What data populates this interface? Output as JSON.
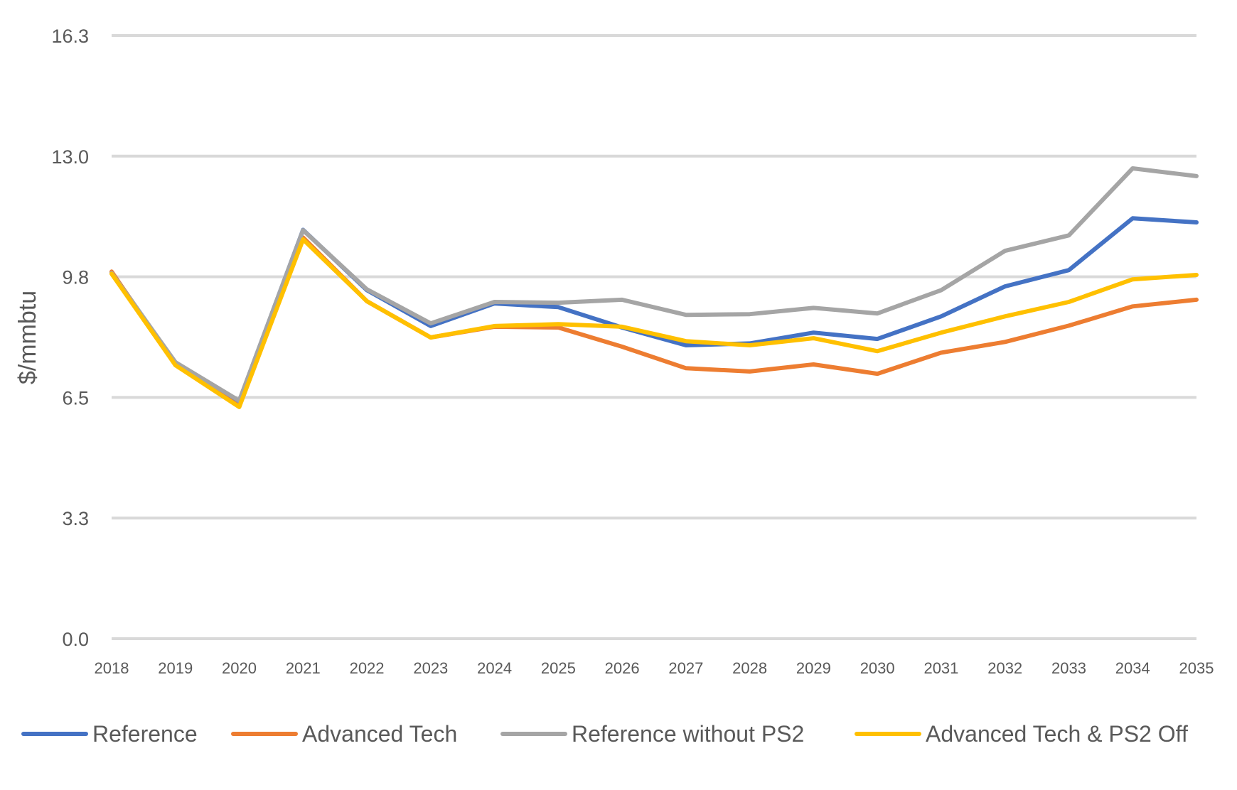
{
  "chart_data": {
    "type": "line",
    "title": "",
    "xlabel": "",
    "ylabel": "$/mmbtu",
    "ylim": [
      0,
      16.3
    ],
    "yticks": [
      "0.0",
      "3.3",
      "6.5",
      "9.8",
      "13.0",
      "16.3"
    ],
    "ytick_values": [
      0,
      3.26,
      6.52,
      9.78,
      13.04,
      16.3
    ],
    "grid": true,
    "legend_position": "bottom",
    "x": [
      "2018",
      "2019",
      "2020",
      "2021",
      "2022",
      "2023",
      "2024",
      "2025",
      "2026",
      "2027",
      "2028",
      "2029",
      "2030",
      "2031",
      "2032",
      "2033",
      "2034",
      "2035"
    ],
    "series": [
      {
        "name": "Reference",
        "color": "#4472c4",
        "values": [
          9.9,
          7.45,
          6.42,
          11.05,
          9.42,
          8.45,
          9.06,
          8.96,
          8.41,
          7.93,
          7.98,
          8.27,
          8.1,
          8.71,
          9.52,
          9.96,
          11.36,
          11.25
        ]
      },
      {
        "name": "Advanced Tech",
        "color": "#ed7d31",
        "values": [
          9.92,
          7.4,
          6.28,
          10.84,
          9.12,
          8.14,
          8.43,
          8.41,
          7.89,
          7.31,
          7.22,
          7.41,
          7.16,
          7.73,
          8.02,
          8.46,
          8.98,
          9.16
        ]
      },
      {
        "name": "Reference without PS2",
        "color": "#a5a5a5",
        "values": [
          9.88,
          7.47,
          6.43,
          11.04,
          9.44,
          8.52,
          9.1,
          9.08,
          9.16,
          8.75,
          8.77,
          8.94,
          8.79,
          9.42,
          10.48,
          10.9,
          12.71,
          12.5
        ]
      },
      {
        "name": "Advanced Tech & PS2 Off",
        "color": "#ffc000",
        "values": [
          9.86,
          7.39,
          6.26,
          10.79,
          9.12,
          8.14,
          8.45,
          8.5,
          8.43,
          8.04,
          7.93,
          8.12,
          7.77,
          8.27,
          8.71,
          9.1,
          9.71,
          9.83
        ]
      }
    ]
  }
}
